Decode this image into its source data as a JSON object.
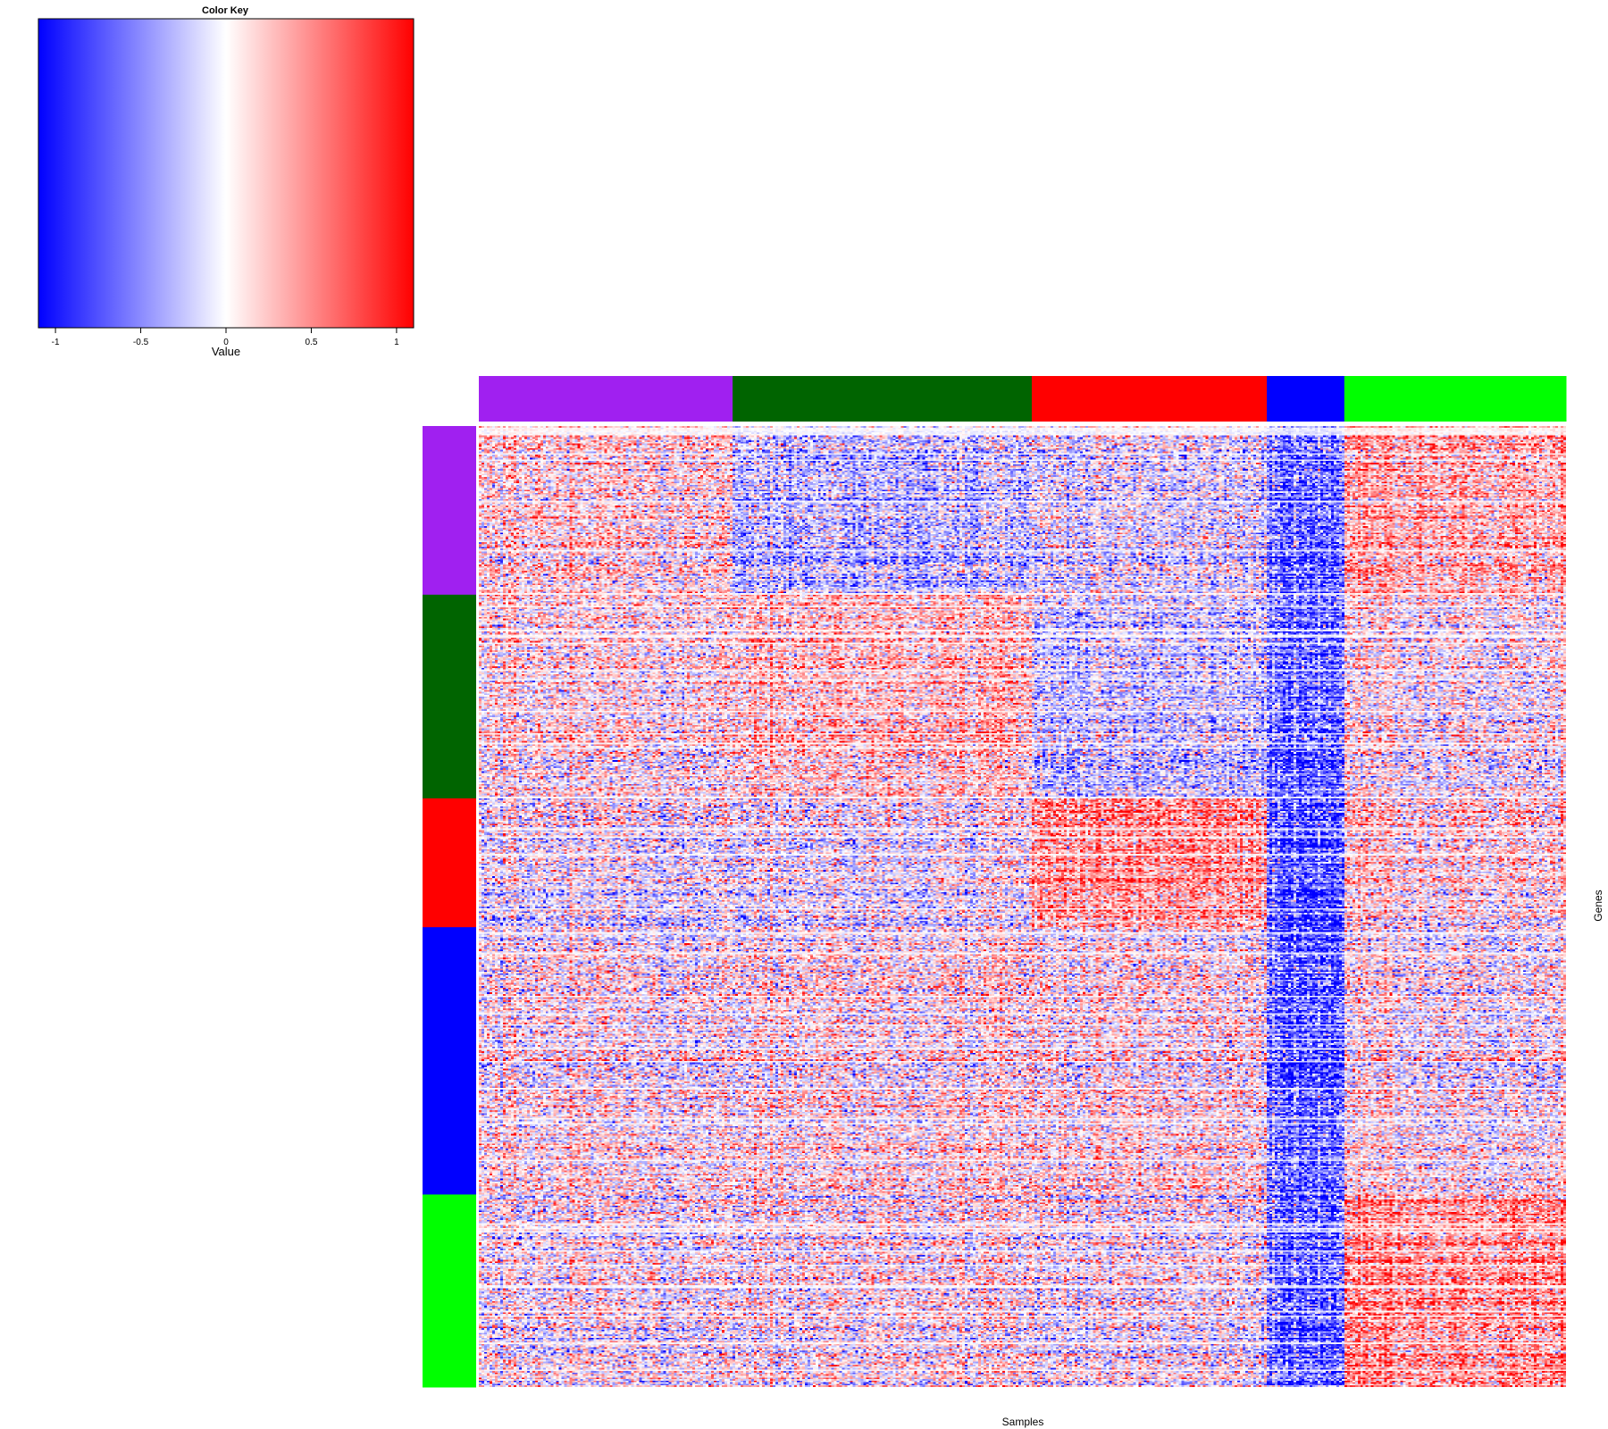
{
  "chart_data": {
    "type": "heatmap",
    "xlabel": "Samples",
    "ylabel": "Genes",
    "color_key": {
      "title": "Color Key",
      "xlabel": "Value",
      "ticks": [
        -1,
        -0.5,
        0,
        0.5,
        1
      ],
      "tick_labels": [
        "-1",
        "-0.5",
        "0",
        "0.5",
        "1"
      ],
      "range": [
        -1.1,
        1.1
      ],
      "low_color": "#0000ff",
      "mid_color": "#ffffff",
      "high_color": "#ff0000"
    },
    "column_groups": [
      {
        "name": "purple",
        "color": "#a020f0",
        "count": 95
      },
      {
        "name": "darkgreen",
        "color": "#006400",
        "count": 112
      },
      {
        "name": "red",
        "color": "#ff0000",
        "count": 88
      },
      {
        "name": "blue",
        "color": "#0000ff",
        "count": 29
      },
      {
        "name": "green",
        "color": "#00ff00",
        "count": 83
      }
    ],
    "row_groups": [
      {
        "name": "purple",
        "color": "#a020f0",
        "count": 106
      },
      {
        "name": "darkgreen",
        "color": "#006400",
        "count": 128
      },
      {
        "name": "red",
        "color": "#ff0000",
        "count": 81
      },
      {
        "name": "blue",
        "color": "#0000ff",
        "count": 168
      },
      {
        "name": "green",
        "color": "#00ff00",
        "count": 121
      }
    ],
    "block_means": [
      [
        0.15,
        -0.25,
        -0.1,
        -0.7,
        0.35
      ],
      [
        0.1,
        0.25,
        -0.2,
        -0.7,
        0.05
      ],
      [
        -0.05,
        -0.05,
        0.45,
        -0.8,
        0.15
      ],
      [
        0.05,
        0.1,
        0.1,
        -0.75,
        0.05
      ],
      [
        0.0,
        0.05,
        0.0,
        -0.7,
        0.45
      ]
    ]
  }
}
